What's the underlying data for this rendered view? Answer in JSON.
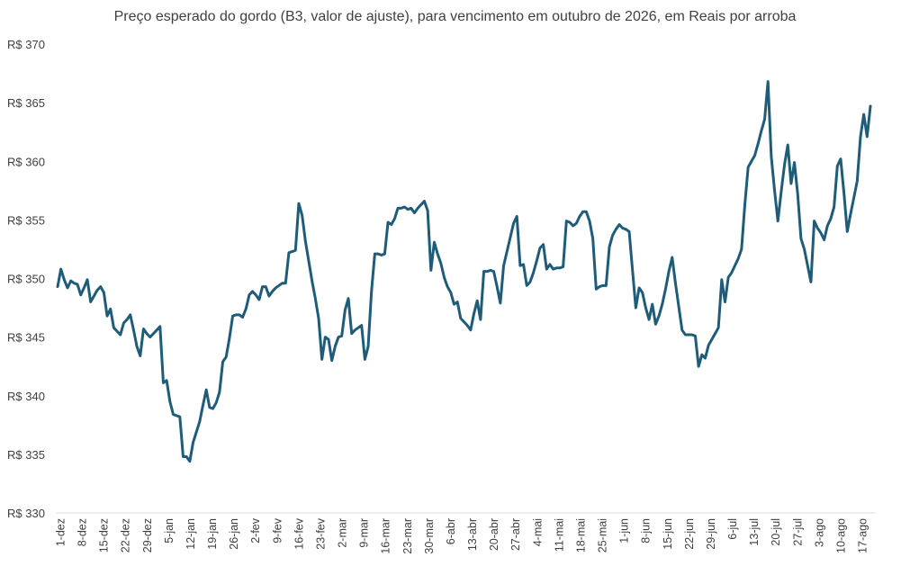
{
  "chart_data": {
    "type": "line",
    "title": "Preço esperado do gordo (B3, valor de ajuste), para vencimento em outubro de 2026, em Reais por arroba",
    "xlabel": "",
    "ylabel": "",
    "ylim": [
      330,
      370
    ],
    "yticks": [
      330,
      335,
      340,
      345,
      350,
      355,
      360,
      365,
      370
    ],
    "ytick_labels": [
      "R$ 330",
      "R$ 335",
      "R$ 340",
      "R$ 345",
      "R$ 350",
      "R$ 355",
      "R$ 360",
      "R$ 365",
      "R$ 370"
    ],
    "xticks": [
      "1-dez",
      "8-dez",
      "15-dez",
      "22-dez",
      "29-dez",
      "5-jan",
      "12-jan",
      "19-jan",
      "26-jan",
      "2-fev",
      "9-fev",
      "16-fev",
      "23-fev",
      "2-mar",
      "9-mar",
      "16-mar",
      "23-mar",
      "30-mar",
      "6-abr",
      "13-abr",
      "20-abr",
      "27-abr",
      "4-mai",
      "11-mai",
      "18-mai",
      "25-mai",
      "1-jun",
      "8-jun",
      "15-jun",
      "22-jun",
      "29-jun",
      "6-jul",
      "13-jul",
      "20-jul",
      "27-jul",
      "3-ago",
      "10-ago",
      "17-ago"
    ],
    "grid": false,
    "legend": "none",
    "line_color": "#1f5c7a",
    "series": [
      {
        "name": "",
        "values": [
          349.3,
          350.8,
          349.9,
          349.2,
          349.8,
          349.6,
          349.5,
          348.6,
          349.2,
          349.9,
          348.0,
          348.5,
          349.0,
          349.3,
          348.8,
          346.8,
          347.4,
          345.8,
          345.5,
          345.2,
          346.2,
          346.5,
          346.9,
          345.6,
          344.2,
          343.4,
          345.7,
          345.3,
          345.0,
          345.3,
          345.6,
          345.9,
          341.1,
          341.3,
          339.5,
          338.4,
          338.3,
          338.2,
          334.8,
          334.8,
          334.4,
          336.0,
          336.9,
          337.8,
          339.2,
          340.5,
          339.0,
          338.9,
          339.4,
          340.3,
          342.9,
          343.3,
          344.9,
          346.8,
          346.9,
          346.9,
          346.7,
          347.4,
          348.6,
          348.9,
          348.6,
          348.2,
          349.3,
          349.3,
          348.5,
          348.9,
          349.2,
          349.4,
          349.6,
          349.6,
          352.2,
          352.3,
          352.4,
          356.4,
          355.4,
          353.2,
          351.5,
          349.8,
          348.3,
          346.6,
          343.1,
          345.0,
          344.8,
          343.0,
          344.2,
          345.0,
          345.1,
          347.3,
          348.3,
          345.3,
          345.6,
          345.8,
          346.0,
          343.1,
          344.2,
          348.9,
          352.1,
          352.1,
          352.0,
          352.1,
          354.8,
          354.6,
          355.1,
          356.0,
          356.0,
          356.1,
          355.9,
          356.0,
          355.6,
          356.0,
          356.3,
          356.6,
          355.8,
          350.7,
          353.1,
          352.1,
          351.3,
          350.1,
          349.3,
          348.8,
          347.8,
          348.0,
          346.6,
          346.3,
          346.0,
          345.6,
          347.0,
          348.1,
          346.5,
          350.6,
          350.6,
          350.7,
          350.6,
          349.3,
          347.9,
          351.1,
          352.3,
          353.5,
          354.7,
          355.3,
          351.1,
          351.2,
          349.4,
          349.7,
          350.5,
          351.5,
          352.6,
          352.9,
          350.8,
          351.2,
          350.8,
          350.9,
          350.9,
          351.0,
          354.9,
          354.8,
          354.5,
          354.7,
          355.3,
          355.7,
          355.7,
          354.9,
          353.4,
          349.1,
          349.3,
          349.4,
          349.4,
          352.7,
          353.7,
          354.2,
          354.6,
          354.3,
          354.2,
          354.0,
          350.7,
          347.5,
          349.2,
          348.8,
          347.5,
          346.5,
          347.8,
          346.1,
          346.8,
          347.8,
          349.1,
          350.6,
          351.8,
          349.6,
          347.6,
          345.6,
          345.2,
          345.2,
          345.2,
          345.1,
          342.5,
          343.5,
          343.2,
          344.3,
          344.8,
          345.3,
          345.8,
          349.9,
          348.0,
          350.1,
          350.5,
          351.1,
          351.7,
          352.5,
          356.3,
          359.5,
          360.0,
          360.5,
          361.5,
          362.6,
          363.6,
          366.8,
          360.4,
          357.5,
          354.9,
          357.4,
          359.7,
          361.4,
          358.1,
          359.9,
          357.2,
          353.4,
          352.5,
          351.1,
          349.7,
          354.9,
          354.3,
          353.9,
          353.3,
          354.5,
          355.1,
          356.1,
          359.6,
          360.2,
          357.3,
          354.0,
          355.5,
          356.9,
          358.3,
          362.1,
          364.0,
          362.1,
          364.7
        ]
      }
    ]
  }
}
